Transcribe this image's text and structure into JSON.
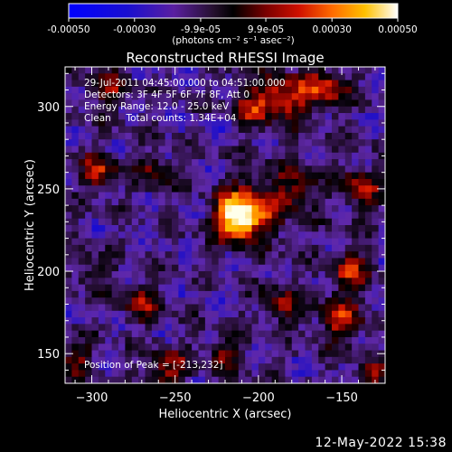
{
  "colorbar": {
    "ticks": [
      "-0.00050",
      "-0.00030",
      "-9.9e-05",
      "9.9e-05",
      "0.00030",
      "0.00050"
    ],
    "tick_values": [
      -0.0005,
      -0.0003,
      -9.9e-05,
      9.9e-05,
      0.0003,
      0.0005
    ],
    "range": [
      -0.0005,
      0.0005
    ],
    "unit_label": "(photons cm⁻² s⁻¹ asec⁻²)"
  },
  "chart_data": {
    "type": "heatmap",
    "title": "Reconstructed RHESSI Image",
    "xlabel": "Heliocentric X (arcsec)",
    "ylabel": "Heliocentric Y (arcsec)",
    "xlim": [
      -316,
      -124
    ],
    "ylim": [
      132,
      324
    ],
    "xticks": [
      -300,
      -250,
      -200,
      -150
    ],
    "yticks": [
      150,
      200,
      250,
      300
    ],
    "peak": [
      -213,
      232
    ],
    "colormap": [
      "#0000ff",
      "#2a0a8a",
      "#5a2fa8",
      "#1a1024",
      "#000000",
      "#7a0000",
      "#d01000",
      "#ff6000",
      "#ffb800",
      "#ffffe8"
    ]
  },
  "annotations": {
    "line1": "29-Jul-2011 04:45:00.000 to 04:51:00.000",
    "line2": "Detectors: 3F 4F 5F 6F 7F 8F, Att 0",
    "line3": "Energy Range: 12.0 - 25.0 keV",
    "line4": "Clean     Total counts: 1.34E+04",
    "peak_text": "Position of Peak = [-213,232]"
  },
  "footer": {
    "date": "12-May-2022 15:38"
  }
}
